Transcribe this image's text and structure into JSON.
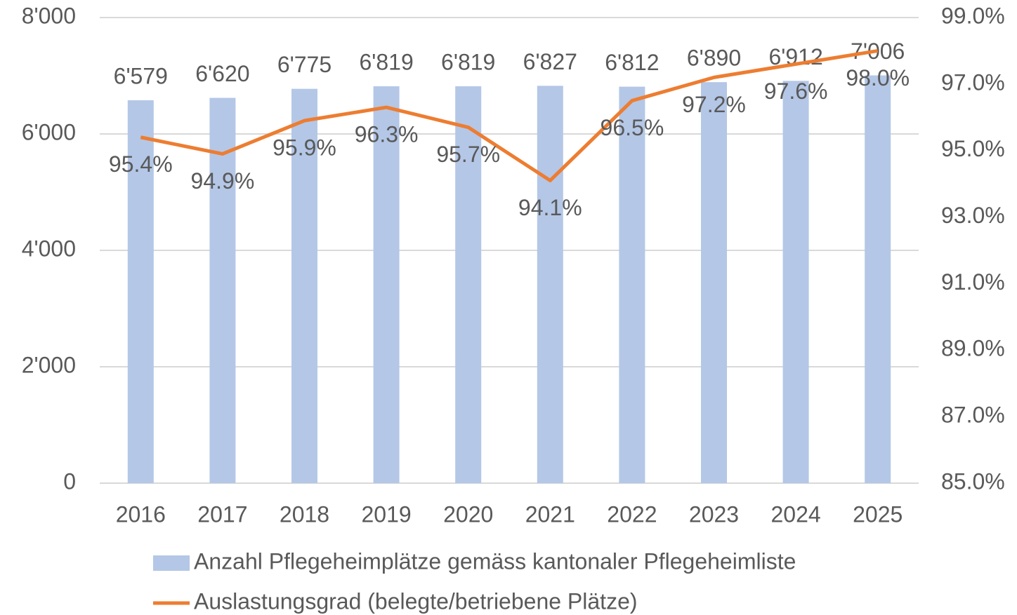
{
  "chart_data": {
    "type": "bar",
    "categories": [
      "2016",
      "2017",
      "2018",
      "2019",
      "2020",
      "2021",
      "2022",
      "2023",
      "2024",
      "2025"
    ],
    "series": [
      {
        "name": "Anzahl Pflegeheimplätze gemäss kantonaler Pflegeheimliste",
        "type": "bar",
        "color": "#b4c7e7",
        "values": [
          6579,
          6620,
          6775,
          6819,
          6819,
          6827,
          6812,
          6890,
          6912,
          7006
        ],
        "value_labels": [
          "6'579",
          "6'620",
          "6'775",
          "6'819",
          "6'819",
          "6'827",
          "6'812",
          "6'890",
          "6'912",
          "7'006"
        ]
      },
      {
        "name": "Auslastungsgrad (belegte/betriebene Plätze)",
        "type": "line",
        "color": "#ed7d31",
        "axis": "y2",
        "values": [
          95.4,
          94.9,
          95.9,
          96.3,
          95.7,
          94.1,
          96.5,
          97.2,
          97.6,
          98.0
        ],
        "value_labels": [
          "95.4%",
          "94.9%",
          "95.9%",
          "96.3%",
          "95.7%",
          "94.1%",
          "96.5%",
          "97.2%",
          "97.6%",
          "98.0%"
        ]
      }
    ],
    "ylim": [
      0,
      8000
    ],
    "yticks": [
      0,
      {
        "value": 2000,
        "label": "2'000"
      },
      {
        "value": 4000,
        "label": "4'000"
      },
      {
        "value": 6000,
        "label": "6'000"
      },
      {
        "value": 8000,
        "label": "8'000"
      }
    ],
    "y2lim": [
      85,
      99
    ],
    "y2ticks": [
      {
        "value": 85,
        "label": "85.0%"
      },
      {
        "value": 87,
        "label": "87.0%"
      },
      {
        "value": 89,
        "label": "89.0%"
      },
      {
        "value": 91,
        "label": "91.0%"
      },
      {
        "value": 93,
        "label": "93.0%"
      },
      {
        "value": 95,
        "label": "95.0%"
      },
      {
        "value": 97,
        "label": "97.0%"
      },
      {
        "value": 99,
        "label": "99.0%"
      }
    ],
    "grid": true,
    "legend": "bottom"
  }
}
